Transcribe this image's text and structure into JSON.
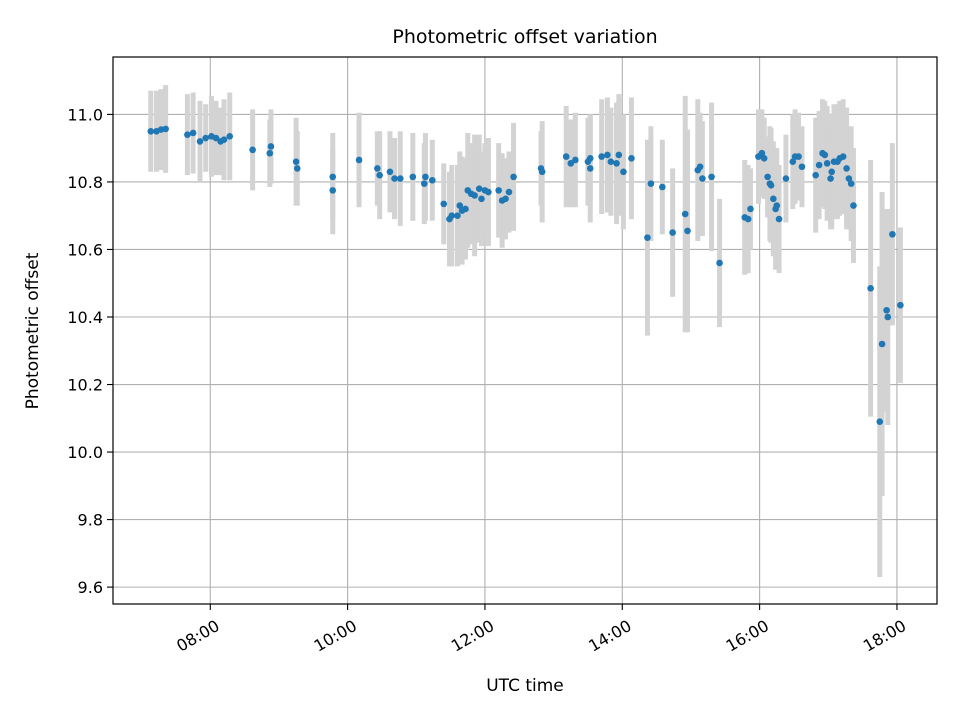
{
  "chart_data": {
    "type": "scatter",
    "title": "Photometric offset variation",
    "xlabel": "UTC time",
    "ylabel": "Photometric offset",
    "xlim": [
      "06:35",
      "18:35"
    ],
    "ylim": [
      9.55,
      11.17
    ],
    "x_ticks": [
      "08:00",
      "10:00",
      "12:00",
      "14:00",
      "16:00",
      "18:00"
    ],
    "y_ticks": [
      "9.6",
      "9.8",
      "10.0",
      "10.2",
      "10.4",
      "10.6",
      "10.8",
      "11.0"
    ],
    "grid": true,
    "colors": {
      "point": "#1f77b4",
      "errorbar": "#d3d3d3",
      "grid": "#b0b0b0"
    },
    "points": [
      {
        "t": "07:08",
        "y": 10.95,
        "e": 0.12
      },
      {
        "t": "07:13",
        "y": 10.95,
        "e": 0.12
      },
      {
        "t": "07:17",
        "y": 10.955,
        "e": 0.12
      },
      {
        "t": "07:21",
        "y": 10.957,
        "e": 0.13
      },
      {
        "t": "07:40",
        "y": 10.94,
        "e": 0.12
      },
      {
        "t": "07:45",
        "y": 10.945,
        "e": 0.12
      },
      {
        "t": "07:51",
        "y": 10.92,
        "e": 0.12
      },
      {
        "t": "07:56",
        "y": 10.93,
        "e": 0.1
      },
      {
        "t": "08:01",
        "y": 10.935,
        "e": 0.12
      },
      {
        "t": "08:05",
        "y": 10.93,
        "e": 0.11
      },
      {
        "t": "08:09",
        "y": 10.92,
        "e": 0.1
      },
      {
        "t": "08:12",
        "y": 10.925,
        "e": 0.12
      },
      {
        "t": "08:17",
        "y": 10.935,
        "e": 0.13
      },
      {
        "t": "08:37",
        "y": 10.895,
        "e": 0.12
      },
      {
        "t": "08:52",
        "y": 10.885,
        "e": 0.1
      },
      {
        "t": "08:53",
        "y": 10.905,
        "e": 0.11
      },
      {
        "t": "09:15",
        "y": 10.86,
        "e": 0.13
      },
      {
        "t": "09:16",
        "y": 10.84,
        "e": 0.11
      },
      {
        "t": "09:47",
        "y": 10.815,
        "e": 0.13
      },
      {
        "t": "09:47",
        "y": 10.775,
        "e": 0.13
      },
      {
        "t": "10:10",
        "y": 10.865,
        "e": 0.14
      },
      {
        "t": "10:26",
        "y": 10.84,
        "e": 0.11
      },
      {
        "t": "10:28",
        "y": 10.82,
        "e": 0.13
      },
      {
        "t": "10:37",
        "y": 10.83,
        "e": 0.12
      },
      {
        "t": "10:41",
        "y": 10.81,
        "e": 0.12
      },
      {
        "t": "10:46",
        "y": 10.81,
        "e": 0.14
      },
      {
        "t": "10:57",
        "y": 10.815,
        "e": 0.13
      },
      {
        "t": "11:07",
        "y": 10.795,
        "e": 0.12
      },
      {
        "t": "11:08",
        "y": 10.815,
        "e": 0.13
      },
      {
        "t": "11:14",
        "y": 10.805,
        "e": 0.12
      },
      {
        "t": "11:24",
        "y": 10.735,
        "e": 0.12
      },
      {
        "t": "11:29",
        "y": 10.69,
        "e": 0.14
      },
      {
        "t": "11:31",
        "y": 10.7,
        "e": 0.15
      },
      {
        "t": "11:36",
        "y": 10.7,
        "e": 0.15
      },
      {
        "t": "11:38",
        "y": 10.73,
        "e": 0.16
      },
      {
        "t": "11:40",
        "y": 10.715,
        "e": 0.16
      },
      {
        "t": "11:43",
        "y": 10.72,
        "e": 0.15
      },
      {
        "t": "11:45",
        "y": 10.775,
        "e": 0.17
      },
      {
        "t": "11:48",
        "y": 10.765,
        "e": 0.15
      },
      {
        "t": "11:51",
        "y": 10.76,
        "e": 0.18
      },
      {
        "t": "11:55",
        "y": 10.78,
        "e": 0.16
      },
      {
        "t": "11:57",
        "y": 10.75,
        "e": 0.14
      },
      {
        "t": "12:00",
        "y": 10.775,
        "e": 0.14
      },
      {
        "t": "12:03",
        "y": 10.77,
        "e": 0.16
      },
      {
        "t": "12:12",
        "y": 10.775,
        "e": 0.14
      },
      {
        "t": "12:15",
        "y": 10.745,
        "e": 0.14
      },
      {
        "t": "12:18",
        "y": 10.75,
        "e": 0.12
      },
      {
        "t": "12:21",
        "y": 10.77,
        "e": 0.12
      },
      {
        "t": "12:25",
        "y": 10.815,
        "e": 0.16
      },
      {
        "t": "12:49",
        "y": 10.84,
        "e": 0.11
      },
      {
        "t": "12:50",
        "y": 10.83,
        "e": 0.15
      },
      {
        "t": "13:11",
        "y": 10.875,
        "e": 0.15
      },
      {
        "t": "13:15",
        "y": 10.855,
        "e": 0.13
      },
      {
        "t": "13:19",
        "y": 10.865,
        "e": 0.14
      },
      {
        "t": "13:30",
        "y": 10.86,
        "e": 0.13
      },
      {
        "t": "13:32",
        "y": 10.84,
        "e": 0.16
      },
      {
        "t": "13:32",
        "y": 10.87,
        "e": 0.13
      },
      {
        "t": "13:42",
        "y": 10.875,
        "e": 0.17
      },
      {
        "t": "13:47",
        "y": 10.88,
        "e": 0.17
      },
      {
        "t": "13:50",
        "y": 10.86,
        "e": 0.16
      },
      {
        "t": "13:55",
        "y": 10.855,
        "e": 0.18
      },
      {
        "t": "13:57",
        "y": 10.88,
        "e": 0.18
      },
      {
        "t": "14:01",
        "y": 10.83,
        "e": 0.17
      },
      {
        "t": "14:08",
        "y": 10.87,
        "e": 0.18
      },
      {
        "t": "14:22",
        "y": 10.635,
        "e": 0.29
      },
      {
        "t": "14:25",
        "y": 10.795,
        "e": 0.17
      },
      {
        "t": "14:35",
        "y": 10.785,
        "e": 0.14
      },
      {
        "t": "14:44",
        "y": 10.65,
        "e": 0.19
      },
      {
        "t": "14:55",
        "y": 10.705,
        "e": 0.35
      },
      {
        "t": "14:57",
        "y": 10.655,
        "e": 0.3
      },
      {
        "t": "15:06",
        "y": 10.835,
        "e": 0.21
      },
      {
        "t": "15:08",
        "y": 10.845,
        "e": 0.16
      },
      {
        "t": "15:10",
        "y": 10.81,
        "e": 0.17
      },
      {
        "t": "15:18",
        "y": 10.815,
        "e": 0.22
      },
      {
        "t": "15:25",
        "y": 10.56,
        "e": 0.19
      },
      {
        "t": "15:47",
        "y": 10.695,
        "e": 0.17
      },
      {
        "t": "15:50",
        "y": 10.69,
        "e": 0.16
      },
      {
        "t": "15:52",
        "y": 10.72,
        "e": 0.12
      },
      {
        "t": "15:59",
        "y": 10.875,
        "e": 0.14
      },
      {
        "t": "16:02",
        "y": 10.885,
        "e": 0.13
      },
      {
        "t": "16:04",
        "y": 10.87,
        "e": 0.12
      },
      {
        "t": "16:07",
        "y": 10.815,
        "e": 0.12
      },
      {
        "t": "16:09",
        "y": 10.795,
        "e": 0.17
      },
      {
        "t": "16:10",
        "y": 10.79,
        "e": 0.17
      },
      {
        "t": "16:12",
        "y": 10.75,
        "e": 0.17
      },
      {
        "t": "16:14",
        "y": 10.72,
        "e": 0.18
      },
      {
        "t": "16:15",
        "y": 10.73,
        "e": 0.17
      },
      {
        "t": "16:17",
        "y": 10.69,
        "e": 0.16
      },
      {
        "t": "16:23",
        "y": 10.81,
        "e": 0.13
      },
      {
        "t": "16:29",
        "y": 10.86,
        "e": 0.14
      },
      {
        "t": "16:31",
        "y": 10.875,
        "e": 0.14
      },
      {
        "t": "16:34",
        "y": 10.875,
        "e": 0.13
      },
      {
        "t": "16:37",
        "y": 10.845,
        "e": 0.12
      },
      {
        "t": "16:49",
        "y": 10.82,
        "e": 0.17
      },
      {
        "t": "16:52",
        "y": 10.85,
        "e": 0.16
      },
      {
        "t": "16:55",
        "y": 10.885,
        "e": 0.16
      },
      {
        "t": "16:57",
        "y": 10.88,
        "e": 0.16
      },
      {
        "t": "16:59",
        "y": 10.855,
        "e": 0.17
      },
      {
        "t": "17:02",
        "y": 10.81,
        "e": 0.15
      },
      {
        "t": "17:03",
        "y": 10.83,
        "e": 0.17
      },
      {
        "t": "17:05",
        "y": 10.86,
        "e": 0.17
      },
      {
        "t": "17:08",
        "y": 10.86,
        "e": 0.17
      },
      {
        "t": "17:10",
        "y": 10.87,
        "e": 0.17
      },
      {
        "t": "17:13",
        "y": 10.875,
        "e": 0.17
      },
      {
        "t": "17:16",
        "y": 10.84,
        "e": 0.18
      },
      {
        "t": "17:18",
        "y": 10.81,
        "e": 0.15
      },
      {
        "t": "17:20",
        "y": 10.795,
        "e": 0.17
      },
      {
        "t": "17:22",
        "y": 10.73,
        "e": 0.17
      },
      {
        "t": "17:37",
        "y": 10.485,
        "e": 0.38
      },
      {
        "t": "17:45",
        "y": 10.09,
        "e": 0.46
      },
      {
        "t": "17:47",
        "y": 10.32,
        "e": 0.45
      },
      {
        "t": "17:51",
        "y": 10.42,
        "e": 0.3
      },
      {
        "t": "17:52",
        "y": 10.4,
        "e": 0.32
      },
      {
        "t": "17:56",
        "y": 10.645,
        "e": 0.27
      },
      {
        "t": "18:03",
        "y": 10.435,
        "e": 0.23
      }
    ]
  }
}
